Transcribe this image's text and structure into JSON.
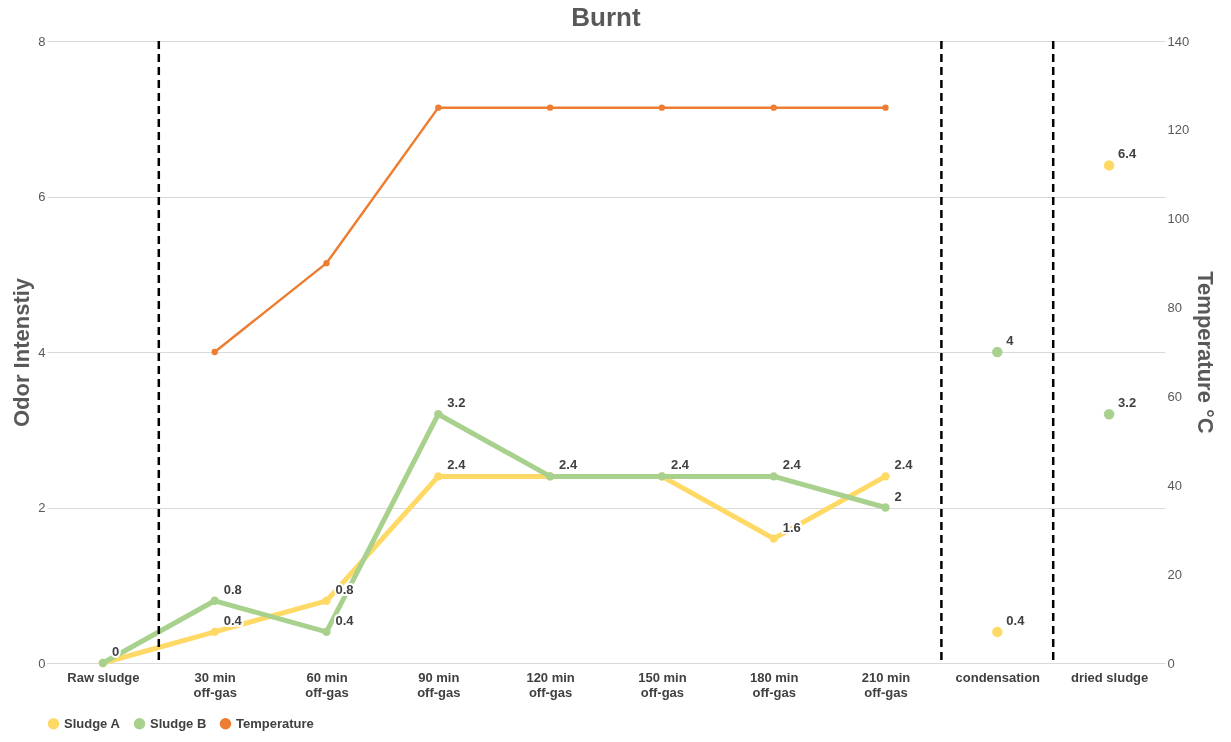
{
  "chart_data": {
    "type": "line",
    "title": "Burnt",
    "ylabel": "Odor Intenstiy",
    "y2label": "Temperature °C",
    "categories": [
      "Raw sludge",
      "30 min\noff-gas",
      "60 min\noff-gas",
      "90 min\noff-gas",
      "120 min\noff-gas",
      "150 min\noff-gas",
      "180 min\noff-gas",
      "210 min\noff-gas",
      "condensation",
      "dried sludge"
    ],
    "series": [
      {
        "name": "Sludge A",
        "color": "#ffd966",
        "values": [
          0,
          0.4,
          0.8,
          2.4,
          2.4,
          2.4,
          1.6,
          2.4,
          null,
          null
        ],
        "value_labels": [
          "0",
          "0.4",
          "0.8",
          "2.4",
          "2.4",
          "2.4",
          "1.6",
          "2.4",
          null,
          null
        ]
      },
      {
        "name": "Sludge B",
        "color": "#a9d18e",
        "values": [
          0,
          0.8,
          0.4,
          3.2,
          2.4,
          2.4,
          2.4,
          2,
          null,
          null
        ],
        "value_labels": [
          null,
          "0.8",
          "0.4",
          "3.2",
          null,
          null,
          "2.4",
          "2",
          null,
          null
        ]
      },
      {
        "name": "Temperature",
        "axis": "y2",
        "color": "#ed7d31",
        "values": [
          null,
          70,
          90,
          125,
          125,
          125,
          125,
          125,
          null,
          null
        ]
      },
      {
        "type": "scatter",
        "color": "#ffd966",
        "values": [
          null,
          null,
          null,
          null,
          null,
          null,
          null,
          null,
          0.4,
          6.4
        ],
        "value_labels": [
          null,
          null,
          null,
          null,
          null,
          null,
          null,
          null,
          "0.4",
          "6.4"
        ]
      },
      {
        "type": "scatter",
        "color": "#a9d18e",
        "values": [
          null,
          null,
          null,
          null,
          null,
          null,
          null,
          null,
          4,
          3.2
        ],
        "value_labels": [
          null,
          null,
          null,
          null,
          null,
          null,
          null,
          null,
          "4",
          "3.2"
        ]
      }
    ],
    "ylim": [
      0,
      8
    ],
    "yticks": [
      0,
      2,
      4,
      6,
      8
    ],
    "y2lim": [
      0,
      140
    ],
    "y2ticks": [
      0,
      20,
      40,
      60,
      80,
      100,
      120,
      140
    ],
    "grid": "y",
    "legend": "bottom",
    "marker": "circle"
  }
}
